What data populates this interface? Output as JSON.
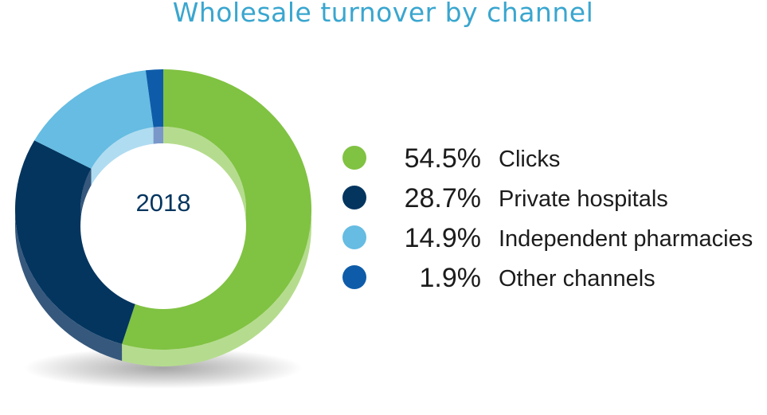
{
  "chart_data": {
    "type": "pie",
    "title": "Wholesale turnover by channel",
    "center_label": "2018",
    "unit": "%",
    "categories": [
      "Clicks",
      "Private hospitals",
      "Independent pharmacies",
      "Other channels"
    ],
    "values": [
      54.5,
      28.7,
      14.9,
      1.9
    ],
    "value_labels": [
      "54.5%",
      "28.7%",
      "14.9%",
      "1.9%"
    ],
    "colors": [
      "#80c242",
      "#03355f",
      "#66bce2",
      "#0e5ca9"
    ],
    "side_colors": [
      "#b5dc8e",
      "#36587c",
      "#b0dcf1",
      "#7a97c9"
    ],
    "legend_position": "right",
    "title_color": "#3aa6cf",
    "text_color": "#1c1c1c",
    "center_label_color": "#03355f"
  }
}
